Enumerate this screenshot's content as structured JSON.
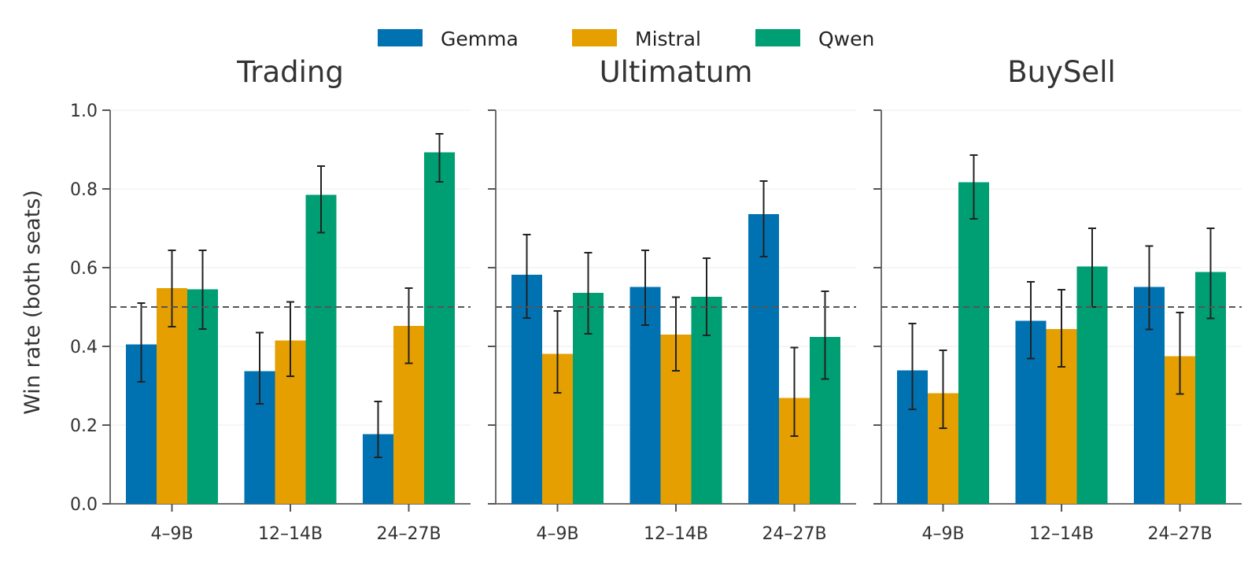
{
  "chart_data": {
    "type": "bar",
    "ylabel": "Win rate (both seats)",
    "ylim": [
      0,
      1
    ],
    "yticks": [
      0.0,
      0.2,
      0.4,
      0.6,
      0.8,
      1.0
    ],
    "reference_line": 0.5,
    "categories": [
      "4–9B",
      "12–14B",
      "24–27B"
    ],
    "legend": {
      "placement": "top-center",
      "entries": [
        {
          "name": "Gemma",
          "color": "#0072B2"
        },
        {
          "name": "Mistral",
          "color": "#E69F00"
        },
        {
          "name": "Qwen",
          "color": "#009E73"
        }
      ]
    },
    "panels": [
      {
        "title": "Trading",
        "series": [
          {
            "name": "Gemma",
            "values": [
              0.405,
              0.337,
              0.177
            ],
            "err_low": [
              0.31,
              0.254,
              0.118
            ],
            "err_high": [
              0.51,
              0.435,
              0.26
            ]
          },
          {
            "name": "Mistral",
            "values": [
              0.548,
              0.415,
              0.452
            ],
            "err_low": [
              0.45,
              0.324,
              0.357
            ],
            "err_high": [
              0.644,
              0.513,
              0.548
            ]
          },
          {
            "name": "Qwen",
            "values": [
              0.545,
              0.785,
              0.893
            ],
            "err_low": [
              0.444,
              0.689,
              0.818
            ],
            "err_high": [
              0.644,
              0.858,
              0.94
            ]
          }
        ]
      },
      {
        "title": "Ultimatum",
        "series": [
          {
            "name": "Gemma",
            "values": [
              0.582,
              0.551,
              0.736
            ],
            "err_low": [
              0.472,
              0.454,
              0.628
            ],
            "err_high": [
              0.684,
              0.644,
              0.82
            ]
          },
          {
            "name": "Mistral",
            "values": [
              0.381,
              0.43,
              0.269
            ],
            "err_low": [
              0.282,
              0.338,
              0.172
            ],
            "err_high": [
              0.49,
              0.525,
              0.397
            ]
          },
          {
            "name": "Qwen",
            "values": [
              0.536,
              0.526,
              0.424
            ],
            "err_low": [
              0.432,
              0.428,
              0.317
            ],
            "err_high": [
              0.638,
              0.624,
              0.54
            ]
          }
        ]
      },
      {
        "title": "BuySell",
        "series": [
          {
            "name": "Gemma",
            "values": [
              0.339,
              0.465,
              0.551
            ],
            "err_low": [
              0.24,
              0.369,
              0.443
            ],
            "err_high": [
              0.458,
              0.564,
              0.655
            ]
          },
          {
            "name": "Mistral",
            "values": [
              0.281,
              0.444,
              0.375
            ],
            "err_low": [
              0.192,
              0.348,
              0.279
            ],
            "err_high": [
              0.39,
              0.544,
              0.486
            ]
          },
          {
            "name": "Qwen",
            "values": [
              0.817,
              0.603,
              0.589
            ],
            "err_low": [
              0.724,
              0.5,
              0.471
            ],
            "err_high": [
              0.886,
              0.7,
              0.7
            ]
          }
        ]
      }
    ]
  }
}
